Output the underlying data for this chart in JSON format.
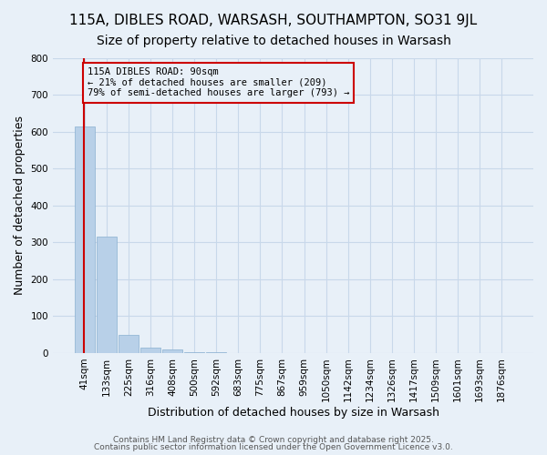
{
  "title1": "115A, DIBLES ROAD, WARSASH, SOUTHAMPTON, SO31 9JL",
  "title2": "Size of property relative to detached houses in Warsash",
  "xlabel": "Distribution of detached houses by size in Warsash",
  "ylabel": "Number of detached properties",
  "bar_values": [
    615,
    315,
    50,
    15,
    10,
    2,
    1,
    0,
    0,
    0,
    0,
    0,
    0,
    0,
    0,
    0,
    0,
    0,
    0,
    0
  ],
  "bar_labels": [
    "41sqm",
    "133sqm",
    "225sqm",
    "316sqm",
    "408sqm",
    "500sqm",
    "592sqm",
    "683sqm",
    "775sqm",
    "867sqm",
    "959sqm",
    "1050sqm",
    "1142sqm",
    "1234sqm",
    "1326sqm",
    "1417sqm",
    "1509sqm",
    "1601sqm",
    "1693sqm",
    "1876sqm"
  ],
  "bar_color": "#b8d0e8",
  "bar_edge_color": "#8ab0d0",
  "grid_color": "#c8d8ea",
  "background_color": "#e8f0f8",
  "property_line_color": "#cc0000",
  "property_line_x": -0.05,
  "annotation_text": "115A DIBLES ROAD: 90sqm\n← 21% of detached houses are smaller (209)\n79% of semi-detached houses are larger (793) →",
  "annotation_box_color": "#cc0000",
  "ylim": [
    0,
    800
  ],
  "yticks": [
    0,
    100,
    200,
    300,
    400,
    500,
    600,
    700,
    800
  ],
  "footer1": "Contains HM Land Registry data © Crown copyright and database right 2025.",
  "footer2": "Contains public sector information licensed under the Open Government Licence v3.0.",
  "title_fontsize": 11,
  "subtitle_fontsize": 10,
  "tick_fontsize": 7.5,
  "ylabel_fontsize": 9,
  "xlabel_fontsize": 9
}
